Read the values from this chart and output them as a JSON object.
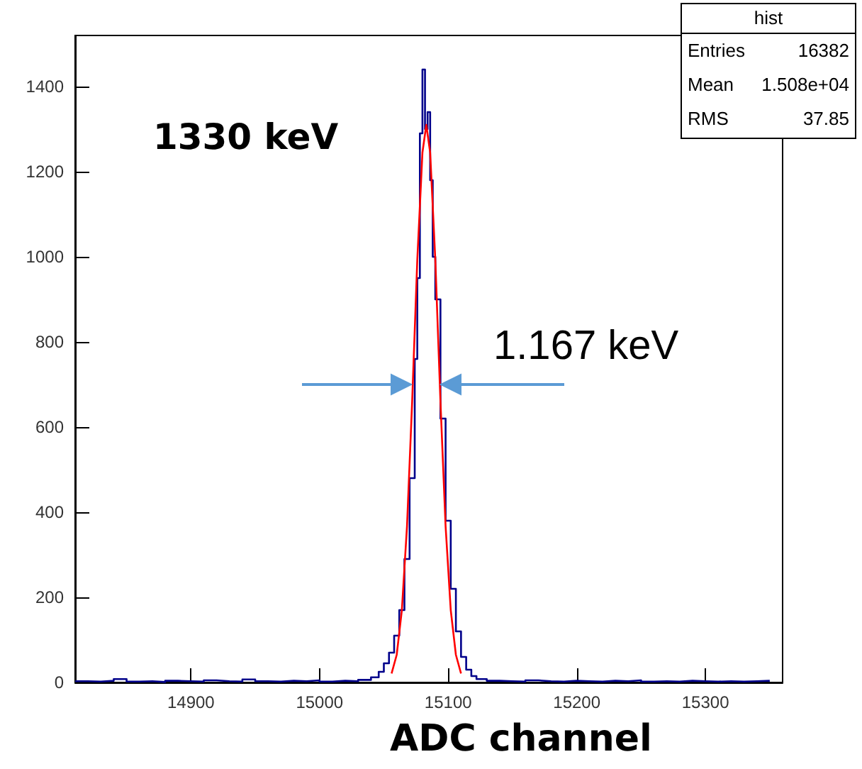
{
  "chart_data": {
    "type": "step",
    "xlabel": "ADC channel",
    "annotations": [
      "1330 keV",
      "1.167 keV",
      "hist",
      "Entries",
      "16382",
      "Mean",
      "1.508e+04",
      "RMS",
      "37.85"
    ],
    "xlim": [
      14810,
      15360
    ],
    "xticks": [
      14900,
      15000,
      15100,
      15200,
      15300
    ],
    "ylim": [
      0,
      1520
    ],
    "yticks": [
      0,
      200,
      400,
      600,
      800,
      1000,
      1200,
      1400
    ],
    "grid": false,
    "marker": "none",
    "series": [
      {
        "type": "step",
        "color": "#00008b",
        "x": [
          14810,
          14820,
          14830,
          14840,
          14850,
          14860,
          14870,
          14880,
          14890,
          14900,
          14910,
          14920,
          14930,
          14940,
          14950,
          14960,
          14970,
          14980,
          14990,
          15000,
          15010,
          15020,
          15030,
          15040,
          15046,
          15050,
          15054,
          15058,
          15062,
          15066,
          15070,
          15074,
          15076,
          15078,
          15080,
          15082,
          15084,
          15086,
          15088,
          15090,
          15094,
          15098,
          15102,
          15106,
          15110,
          15114,
          15118,
          15122,
          15130,
          15140,
          15150,
          15160,
          15170,
          15180,
          15190,
          15200,
          15210,
          15220,
          15230,
          15240,
          15250,
          15260,
          15270,
          15280,
          15290,
          15300,
          15310,
          15320,
          15330,
          15340,
          15350
        ],
        "values": [
          3,
          2,
          4,
          8,
          2,
          3,
          1,
          4,
          3,
          2,
          5,
          3,
          2,
          7,
          3,
          2,
          4,
          3,
          5,
          2,
          4,
          3,
          6,
          12,
          25,
          45,
          70,
          110,
          170,
          290,
          480,
          760,
          950,
          1290,
          1440,
          1300,
          1340,
          1180,
          1000,
          900,
          620,
          380,
          220,
          120,
          60,
          30,
          15,
          8,
          4,
          3,
          2,
          5,
          3,
          2,
          4,
          3,
          2,
          4,
          3,
          5,
          2,
          3,
          2,
          4,
          3,
          2,
          3,
          2,
          3,
          4,
          3
        ]
      },
      {
        "type": "line",
        "color": "#ff0000",
        "x": [
          15056,
          15060,
          15064,
          15068,
          15072,
          15076,
          15080,
          15083,
          15086,
          15090,
          15094,
          15098,
          15102,
          15106,
          15110
        ],
        "values": [
          21,
          65,
          170,
          367,
          660,
          993,
          1245,
          1310,
          1245,
          993,
          660,
          367,
          170,
          65,
          21
        ]
      }
    ]
  }
}
